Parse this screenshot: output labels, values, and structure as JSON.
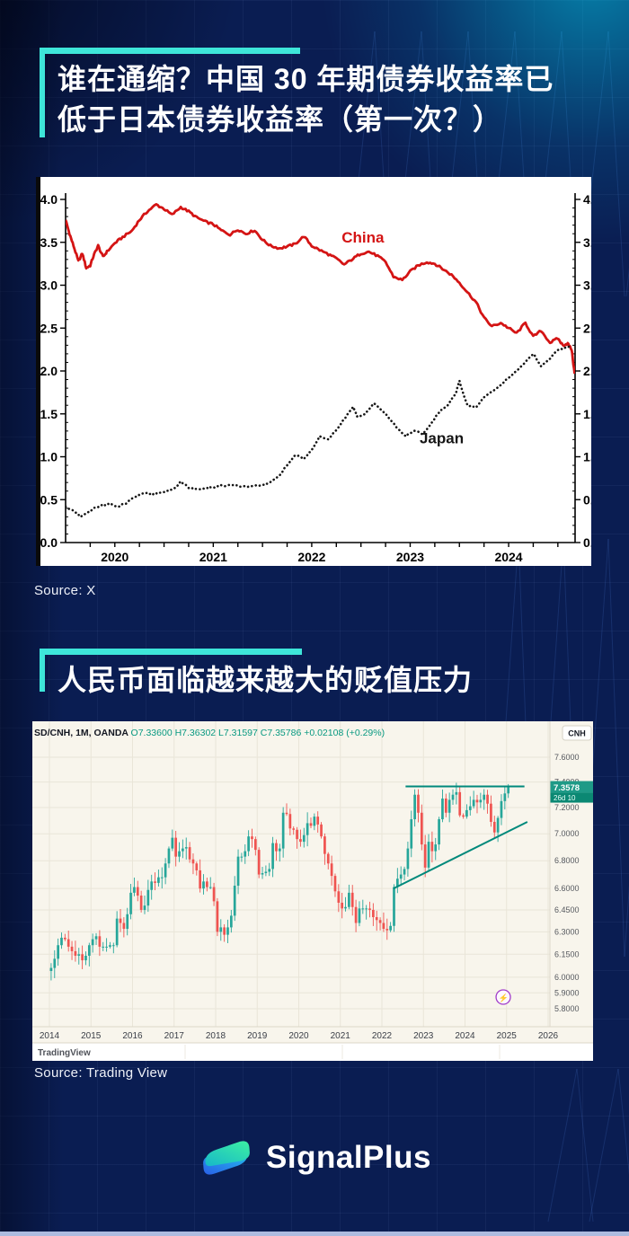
{
  "section1": {
    "title_line1": "谁在通缩？中国 30 年期债券收益率已",
    "title_line2": "低于日本债券收益率（第一次？）",
    "source": "Source: X"
  },
  "section2": {
    "title": "人民币面临越来越大的贬值压力",
    "source": "Source: Trading View"
  },
  "footer": {
    "brand": "SignalPlus"
  },
  "colors": {
    "background": "#0a1d52",
    "accent": "#3ee6d9",
    "china_red": "#d41414",
    "japan_black": "#151515",
    "candle_up": "#26a69a",
    "candle_down": "#ef5350",
    "trendline": "#00897b",
    "chart2_bg": "#f8f5ec",
    "ticker_value": "#089981"
  },
  "chart_data": [
    {
      "type": "line",
      "title": "China vs Japan 30-year government bond yield (%)",
      "x_range": [
        2019.5,
        2024.675
      ],
      "y_range": [
        0,
        4
      ],
      "y_tick_step": 0.5,
      "y_minor_step": 0.1,
      "x_year_labels": [
        "2020",
        "2021",
        "2022",
        "2023",
        "2024"
      ],
      "grid": false,
      "legend_position": "inline-labels",
      "series": [
        {
          "name": "China",
          "style": "solid",
          "color": "#d41414",
          "label_at": [
            2022.52,
            3.56
          ],
          "points": [
            [
              2019.5,
              3.76
            ],
            [
              2019.54,
              3.6
            ],
            [
              2019.58,
              3.46
            ],
            [
              2019.63,
              3.28
            ],
            [
              2019.67,
              3.37
            ],
            [
              2019.71,
              3.2
            ],
            [
              2019.75,
              3.23
            ],
            [
              2019.79,
              3.36
            ],
            [
              2019.83,
              3.46
            ],
            [
              2019.88,
              3.33
            ],
            [
              2019.92,
              3.39
            ],
            [
              2020.0,
              3.49
            ],
            [
              2020.08,
              3.56
            ],
            [
              2020.17,
              3.63
            ],
            [
              2020.25,
              3.76
            ],
            [
              2020.33,
              3.86
            ],
            [
              2020.42,
              3.94
            ],
            [
              2020.5,
              3.89
            ],
            [
              2020.58,
              3.82
            ],
            [
              2020.67,
              3.91
            ],
            [
              2020.75,
              3.86
            ],
            [
              2020.83,
              3.79
            ],
            [
              2020.92,
              3.74
            ],
            [
              2021.0,
              3.71
            ],
            [
              2021.08,
              3.64
            ],
            [
              2021.17,
              3.59
            ],
            [
              2021.25,
              3.65
            ],
            [
              2021.33,
              3.6
            ],
            [
              2021.42,
              3.64
            ],
            [
              2021.5,
              3.53
            ],
            [
              2021.58,
              3.46
            ],
            [
              2021.67,
              3.43
            ],
            [
              2021.75,
              3.45
            ],
            [
              2021.83,
              3.48
            ],
            [
              2021.92,
              3.57
            ],
            [
              2022.0,
              3.46
            ],
            [
              2022.08,
              3.41
            ],
            [
              2022.17,
              3.36
            ],
            [
              2022.25,
              3.31
            ],
            [
              2022.33,
              3.24
            ],
            [
              2022.42,
              3.31
            ],
            [
              2022.5,
              3.37
            ],
            [
              2022.58,
              3.39
            ],
            [
              2022.67,
              3.34
            ],
            [
              2022.75,
              3.27
            ],
            [
              2022.83,
              3.1
            ],
            [
              2022.92,
              3.06
            ],
            [
              2023.0,
              3.16
            ],
            [
              2023.08,
              3.23
            ],
            [
              2023.17,
              3.27
            ],
            [
              2023.25,
              3.25
            ],
            [
              2023.33,
              3.19
            ],
            [
              2023.42,
              3.12
            ],
            [
              2023.5,
              3.03
            ],
            [
              2023.58,
              2.92
            ],
            [
              2023.67,
              2.8
            ],
            [
              2023.75,
              2.62
            ],
            [
              2023.83,
              2.52
            ],
            [
              2023.92,
              2.56
            ],
            [
              2024.0,
              2.5
            ],
            [
              2024.08,
              2.44
            ],
            [
              2024.17,
              2.56
            ],
            [
              2024.25,
              2.4
            ],
            [
              2024.33,
              2.47
            ],
            [
              2024.42,
              2.33
            ],
            [
              2024.5,
              2.38
            ],
            [
              2024.55,
              2.3
            ],
            [
              2024.6,
              2.32
            ],
            [
              2024.64,
              2.25
            ],
            [
              2024.67,
              1.97
            ]
          ]
        },
        {
          "name": "Japan",
          "style": "dotted",
          "color": "#151515",
          "label_at": [
            2023.32,
            1.22
          ],
          "points": [
            [
              2019.5,
              0.42
            ],
            [
              2019.58,
              0.37
            ],
            [
              2019.65,
              0.3
            ],
            [
              2019.71,
              0.34
            ],
            [
              2019.79,
              0.4
            ],
            [
              2019.88,
              0.44
            ],
            [
              2019.96,
              0.45
            ],
            [
              2020.04,
              0.42
            ],
            [
              2020.13,
              0.47
            ],
            [
              2020.21,
              0.54
            ],
            [
              2020.29,
              0.58
            ],
            [
              2020.38,
              0.56
            ],
            [
              2020.46,
              0.58
            ],
            [
              2020.54,
              0.6
            ],
            [
              2020.63,
              0.65
            ],
            [
              2020.67,
              0.71
            ],
            [
              2020.75,
              0.64
            ],
            [
              2020.83,
              0.62
            ],
            [
              2020.92,
              0.63
            ],
            [
              2021.0,
              0.64
            ],
            [
              2021.08,
              0.66
            ],
            [
              2021.17,
              0.67
            ],
            [
              2021.25,
              0.66
            ],
            [
              2021.33,
              0.65
            ],
            [
              2021.42,
              0.66
            ],
            [
              2021.5,
              0.67
            ],
            [
              2021.58,
              0.7
            ],
            [
              2021.67,
              0.78
            ],
            [
              2021.75,
              0.9
            ],
            [
              2021.83,
              1.02
            ],
            [
              2021.92,
              0.98
            ],
            [
              2022.0,
              1.08
            ],
            [
              2022.08,
              1.24
            ],
            [
              2022.17,
              1.2
            ],
            [
              2022.25,
              1.31
            ],
            [
              2022.33,
              1.44
            ],
            [
              2022.42,
              1.58
            ],
            [
              2022.46,
              1.47
            ],
            [
              2022.54,
              1.5
            ],
            [
              2022.63,
              1.62
            ],
            [
              2022.71,
              1.55
            ],
            [
              2022.79,
              1.44
            ],
            [
              2022.88,
              1.32
            ],
            [
              2022.96,
              1.24
            ],
            [
              2023.04,
              1.3
            ],
            [
              2023.13,
              1.27
            ],
            [
              2023.21,
              1.38
            ],
            [
              2023.29,
              1.52
            ],
            [
              2023.38,
              1.6
            ],
            [
              2023.46,
              1.73
            ],
            [
              2023.5,
              1.88
            ],
            [
              2023.58,
              1.6
            ],
            [
              2023.67,
              1.57
            ],
            [
              2023.75,
              1.7
            ],
            [
              2023.83,
              1.76
            ],
            [
              2023.92,
              1.84
            ],
            [
              2024.0,
              1.92
            ],
            [
              2024.08,
              2.0
            ],
            [
              2024.17,
              2.1
            ],
            [
              2024.25,
              2.2
            ],
            [
              2024.33,
              2.05
            ],
            [
              2024.42,
              2.15
            ],
            [
              2024.5,
              2.24
            ],
            [
              2024.58,
              2.27
            ],
            [
              2024.62,
              2.28
            ]
          ]
        }
      ]
    },
    {
      "type": "candlestick",
      "symbol_text": "SD/CNH, 1M, OANDA",
      "ohlc_text": "O7.33600  H7.36302  L7.31597  C7.35786  +0.02108 (+0.29%)",
      "currency_button": "CNH",
      "price_ticks": [
        "7.6000",
        "7.4000",
        "7.2000",
        "7.0000",
        "6.8000",
        "6.6000",
        "6.4500",
        "6.3000",
        "6.1500",
        "6.0000",
        "5.9000",
        "5.8000"
      ],
      "price_label": "7.3578",
      "countdown_label": "26d 10",
      "x_labels": [
        "2014",
        "2015",
        "2016",
        "2017",
        "2018",
        "2019",
        "2020",
        "2021",
        "2022",
        "2023",
        "2024",
        "2025",
        "2026"
      ],
      "watermark": "TradingView",
      "scale": "log",
      "start_year": 2014,
      "first_open": 6.04,
      "monthly_closes": [
        6.06,
        6.12,
        6.21,
        6.26,
        6.25,
        6.2,
        6.17,
        6.14,
        6.15,
        6.11,
        6.14,
        6.21,
        6.25,
        6.27,
        6.2,
        6.2,
        6.2,
        6.21,
        6.21,
        6.39,
        6.36,
        6.32,
        6.42,
        6.57,
        6.61,
        6.55,
        6.45,
        6.48,
        6.59,
        6.65,
        6.64,
        6.68,
        6.68,
        6.78,
        6.89,
        6.97,
        6.83,
        6.87,
        6.89,
        6.9,
        6.81,
        6.78,
        6.73,
        6.6,
        6.65,
        6.61,
        6.61,
        6.51,
        6.3,
        6.33,
        6.28,
        6.33,
        6.41,
        6.62,
        6.83,
        6.83,
        6.87,
        6.98,
        6.96,
        6.88,
        6.7,
        6.71,
        6.72,
        6.74,
        6.93,
        6.87,
        6.89,
        7.16,
        7.15,
        7.04,
        7.03,
        6.96,
        6.94,
        6.99,
        7.08,
        7.06,
        7.13,
        7.07,
        6.98,
        6.85,
        6.78,
        6.69,
        6.58,
        6.5,
        6.46,
        6.47,
        6.57,
        6.47,
        6.36,
        6.46,
        6.46,
        6.46,
        6.45,
        6.4,
        6.38,
        6.36,
        6.32,
        6.31,
        6.34,
        6.61,
        6.67,
        6.7,
        6.74,
        6.89,
        7.11,
        7.3,
        7.16,
        6.92,
        6.75,
        6.94,
        6.87,
        6.92,
        7.11,
        7.27,
        7.16,
        7.26,
        7.3,
        7.32,
        7.14,
        7.13,
        7.18,
        7.21,
        7.26,
        7.24,
        7.26,
        7.3,
        7.23,
        7.09,
        7.01,
        7.12,
        7.25,
        7.31,
        7.358
      ],
      "trendlines": [
        {
          "t1": 2022.57,
          "p1": 7.365,
          "t2": 2025.43,
          "p2": 7.365
        },
        {
          "t1": 2022.28,
          "p1": 6.6,
          "t2": 2025.5,
          "p2": 7.09
        }
      ],
      "event_marker": {
        "t": 2024.92,
        "glyph": "⚡"
      }
    }
  ]
}
